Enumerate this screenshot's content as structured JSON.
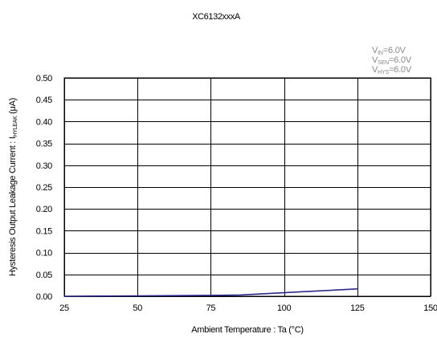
{
  "chart_data": {
    "type": "line",
    "title": "XC6132xxxA",
    "xlabel": "Ambient Temperature : Ta (°C)",
    "ylabel": "Hysteresis Output Leakage Current : I",
    "ylabel_sub": "HYLEAK",
    "ylabel_unit": " (μA)",
    "xlim": [
      25,
      150
    ],
    "ylim": [
      0,
      0.5
    ],
    "x_ticks": [
      "25",
      "50",
      "75",
      "100",
      "125",
      "150"
    ],
    "y_ticks": [
      "0.00",
      "0.05",
      "0.10",
      "0.15",
      "0.20",
      "0.25",
      "0.30",
      "0.35",
      "0.40",
      "0.45",
      "0.50"
    ],
    "grid": true,
    "series": [
      {
        "color": "#2a2a8c",
        "x": [
          25,
          50,
          75,
          85,
          100,
          125
        ],
        "y": [
          0.0,
          0.001,
          0.002,
          0.003,
          0.008,
          0.017
        ]
      }
    ],
    "annotations": [
      {
        "main": "V",
        "sub": "IN",
        "rest": "=6.0V"
      },
      {
        "main": "V",
        "sub": "SEN",
        "rest": "=6.0V"
      },
      {
        "main": "V",
        "sub": "HYS",
        "rest": "=6.0V"
      }
    ]
  }
}
